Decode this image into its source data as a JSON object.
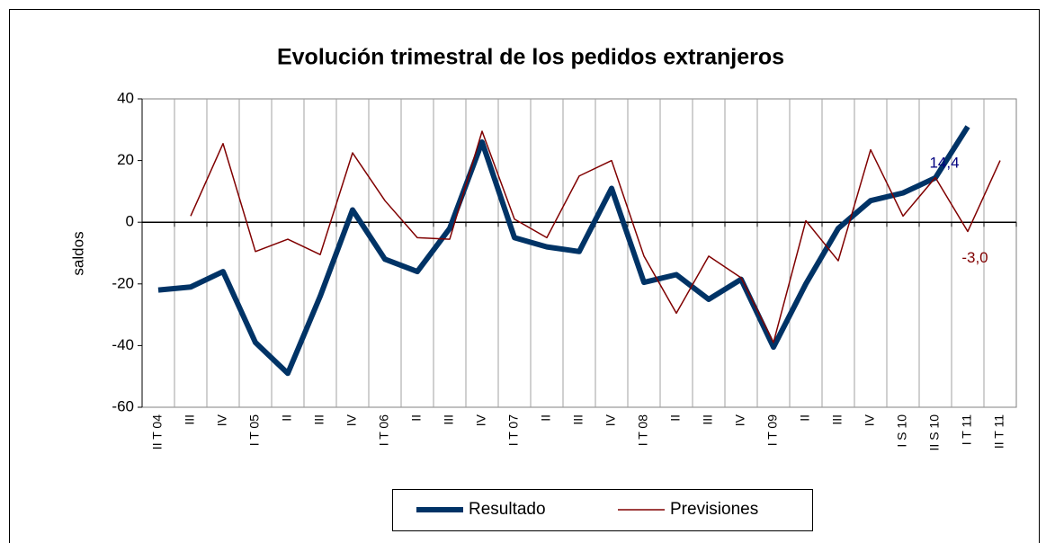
{
  "chart_data": {
    "type": "line",
    "title": "Evolución trimestral de los pedidos extranjeros",
    "ylabel": "saldos",
    "categories": [
      "II T 04",
      "III",
      "IV",
      "I T 05",
      "II",
      "III",
      "IV",
      "I T 06",
      "II",
      "III",
      "IV",
      "I T 07",
      "II",
      "III",
      "IV",
      "I T 08",
      "II",
      "III",
      "IV",
      "I T 09",
      "II",
      "III",
      "IV",
      "I S 10",
      "II S 10",
      "I T 11",
      "II T 11"
    ],
    "series": [
      {
        "name": "Resultado",
        "color": "#003366",
        "width": 6,
        "values": [
          -22,
          -21,
          -16,
          -39,
          -49,
          -24,
          4,
          -12,
          -16,
          -2,
          26,
          -5,
          -8,
          -9.5,
          11,
          -19.5,
          -17,
          -25,
          -18.5,
          -40.5,
          -20,
          -2,
          7,
          9.5,
          14.4,
          31,
          null
        ],
        "value_labels": [
          null,
          null,
          null,
          null,
          null,
          null,
          null,
          null,
          null,
          null,
          null,
          null,
          null,
          null,
          null,
          null,
          null,
          null,
          null,
          null,
          null,
          null,
          null,
          null,
          "14,4",
          null,
          null
        ],
        "label_color": "#000080"
      },
      {
        "name": "Previsiones",
        "color": "#800000",
        "width": 1.5,
        "values": [
          null,
          2,
          25.5,
          -9.5,
          -5.5,
          -10.5,
          22.5,
          7,
          -5,
          -5.5,
          29.5,
          1,
          -5,
          15,
          20,
          -11,
          -29.5,
          -11,
          -18,
          -39,
          0.5,
          -12.5,
          23.5,
          2,
          14.5,
          -3,
          20
        ],
        "value_labels": [
          null,
          null,
          null,
          null,
          null,
          null,
          null,
          null,
          null,
          null,
          null,
          null,
          null,
          null,
          null,
          null,
          null,
          null,
          null,
          null,
          null,
          null,
          null,
          null,
          null,
          "-3,0",
          null
        ],
        "label_color": "#800000"
      }
    ],
    "ylim": [
      -60,
      40
    ],
    "yticks": [
      -60,
      -40,
      -20,
      0,
      20,
      40
    ],
    "grid": "vertical",
    "legend": "bottom"
  }
}
